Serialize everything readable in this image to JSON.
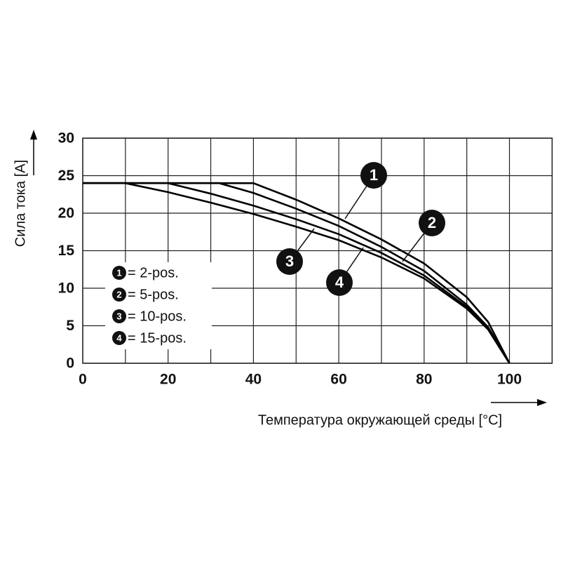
{
  "chart_data": {
    "type": "line",
    "x_label": "Температура окружающей среды [°C]",
    "y_label": "Сила тока [A]",
    "xlim": [
      0,
      110
    ],
    "xticks": [
      0,
      20,
      40,
      60,
      80,
      100
    ],
    "xgrid": [
      10,
      30,
      50,
      70,
      90
    ],
    "ylim": [
      0,
      30
    ],
    "yticks": [
      0,
      5,
      10,
      15,
      20,
      25,
      30
    ],
    "grid": true,
    "color": "#000000",
    "series": [
      {
        "name": "= 2-pos.",
        "marker": "1",
        "x": [
          0,
          40,
          50,
          60,
          70,
          80,
          90,
          95,
          100
        ],
        "values": [
          24,
          24,
          21.8,
          19.3,
          16.5,
          13.3,
          8.8,
          5.5,
          0
        ]
      },
      {
        "name": "= 5-pos.",
        "marker": "2",
        "x": [
          0,
          32,
          40,
          50,
          60,
          70,
          80,
          90,
          95,
          100
        ],
        "values": [
          24,
          24,
          22.7,
          20.6,
          18.3,
          15.5,
          12.3,
          7.8,
          4.8,
          0
        ]
      },
      {
        "name": "= 10-pos.",
        "marker": "3",
        "x": [
          0,
          20,
          30,
          40,
          50,
          60,
          70,
          80,
          90,
          95,
          100
        ],
        "values": [
          24,
          24,
          22.6,
          21,
          19.2,
          17.2,
          14.7,
          11.7,
          7.5,
          4.6,
          0
        ]
      },
      {
        "name": "= 15-pos.",
        "marker": "4",
        "x": [
          0,
          10,
          20,
          30,
          40,
          50,
          60,
          70,
          80,
          90,
          95,
          100
        ],
        "values": [
          24,
          24,
          22.8,
          21.4,
          19.9,
          18.2,
          16.4,
          14.1,
          11.3,
          7.3,
          4.5,
          0
        ]
      }
    ]
  }
}
